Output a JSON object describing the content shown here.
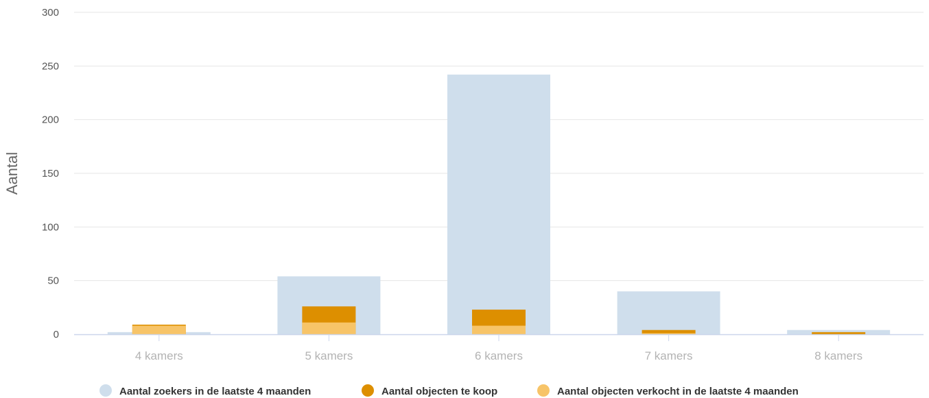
{
  "chart_data": {
    "type": "bar",
    "ylabel": "Aantal",
    "xlabel": "",
    "ylim": [
      0,
      300
    ],
    "yticks": [
      0,
      50,
      100,
      150,
      200,
      250,
      300
    ],
    "grid": true,
    "legend_position": "bottom",
    "categories": [
      "4 kamers",
      "5 kamers",
      "6 kamers",
      "7 kamers",
      "8 kamers"
    ],
    "series": [
      {
        "name": "Aantal zoekers in de laatste 4 maanden",
        "values": [
          2,
          54,
          242,
          40,
          4
        ],
        "color": "#cfdeec"
      },
      {
        "name": "Aantal objecten te koop",
        "values": [
          9,
          26,
          23,
          4,
          2
        ],
        "color": "#dd8f00"
      },
      {
        "name": "Aantal objecten verkocht in de laatste 4 maanden",
        "values": [
          8,
          11,
          8,
          1,
          0
        ],
        "color": "#f7c468"
      }
    ]
  }
}
